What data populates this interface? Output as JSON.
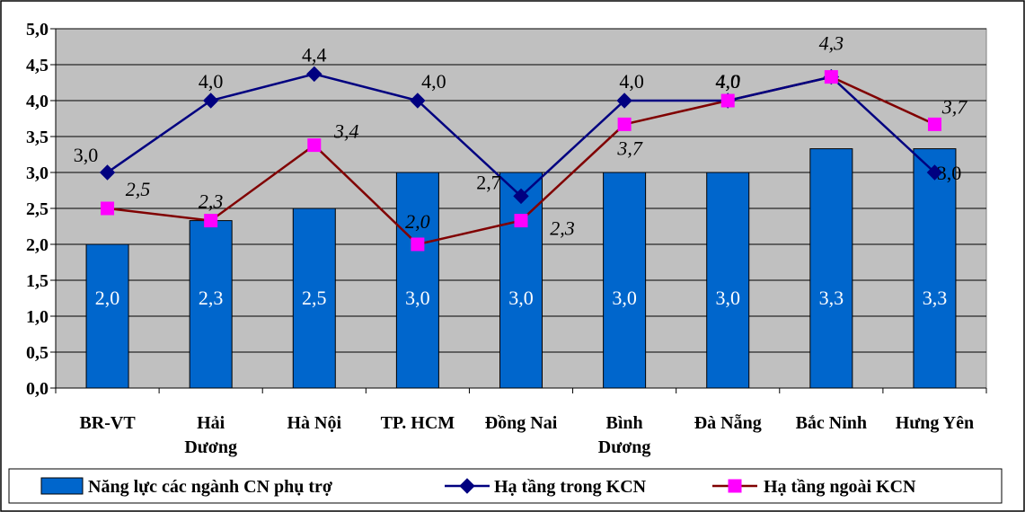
{
  "chart_data": {
    "type": "bar",
    "categories": [
      [
        "BR-VT"
      ],
      [
        "Hải",
        "Dương"
      ],
      [
        "Hà Nội"
      ],
      [
        "TP. HCM"
      ],
      [
        "Đồng Nai"
      ],
      [
        "Bình",
        "Dương"
      ],
      [
        "Đà Nẵng"
      ],
      [
        "Bắc Ninh"
      ],
      [
        "Hưng Yên"
      ]
    ],
    "ylim": [
      0,
      5
    ],
    "yticks": [
      "0,0",
      "0,5",
      "1,0",
      "1,5",
      "2,0",
      "2,5",
      "3,0",
      "3,5",
      "4,0",
      "4,5",
      "5,0"
    ],
    "grid": true,
    "legend_position": "bottom",
    "series": [
      {
        "name": "Năng lực các ngành CN phụ trợ",
        "kind": "bar",
        "color": "#0066CC",
        "values": [
          2.0,
          2.33,
          2.5,
          3.0,
          3.0,
          3.0,
          3.0,
          3.33,
          3.33
        ],
        "labels": [
          "2,0",
          "2,3",
          "2,5",
          "3,0",
          "3,0",
          "3,0",
          "3,0",
          "3,3",
          "3,3"
        ]
      },
      {
        "name": "Hạ tầng trong KCN",
        "kind": "line",
        "color": "#000080",
        "marker": "diamond",
        "values": [
          3.0,
          4.0,
          4.37,
          4.0,
          2.67,
          4.0,
          4.0,
          4.33,
          3.0
        ],
        "labels": [
          "3,0",
          "4,0",
          "4,4",
          "4,0",
          "2,7",
          "4,0",
          "4,0",
          "",
          "3,0"
        ]
      },
      {
        "name": "Hạ tầng ngoài KCN",
        "kind": "line",
        "color": "#800000",
        "marker": "square",
        "marker_color": "#FF00FF",
        "values": [
          2.5,
          2.33,
          3.38,
          2.0,
          2.33,
          3.67,
          4.0,
          4.33,
          3.67
        ],
        "labels": [
          "2,5",
          "2,3",
          "3,4",
          "2,0",
          "2,3",
          "3,7",
          "4,0",
          "4,3",
          "3,7"
        ]
      }
    ]
  }
}
